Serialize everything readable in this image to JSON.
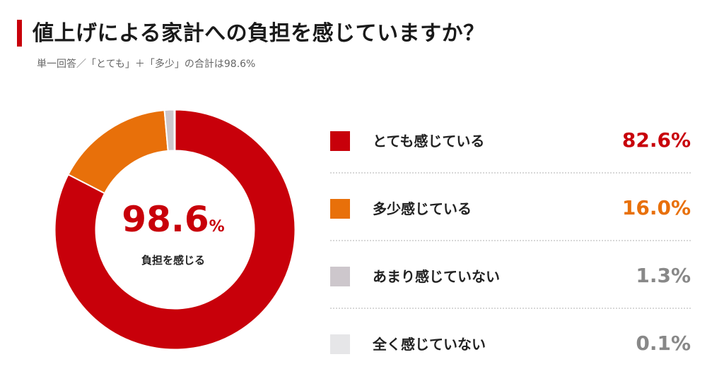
{
  "header": {
    "title": "値上げによる家計への負担を感じていますか？",
    "subtitle": "単一回答／「とても」＋「多少」の合計は98.6%"
  },
  "center": {
    "value": "98.6",
    "unit": "%",
    "label": "負担を感じる"
  },
  "colors": {
    "accent": "#c8000a",
    "very": "#c8000a",
    "somewhat": "#e8700a",
    "not_much": "#cdc7cc",
    "not_at_all": "#e6e6e8",
    "value_gray": "#888888"
  },
  "chart_data": {
    "type": "pie",
    "variant": "donut",
    "categories": [
      "とても感じている",
      "多少感じている",
      "あまり感じていない",
      "全く感じていない"
    ],
    "values": [
      82.6,
      16.0,
      1.3,
      0.1
    ],
    "value_labels": [
      "82.6%",
      "16.0%",
      "1.3%",
      "0.1%"
    ],
    "legend_position": "right"
  }
}
